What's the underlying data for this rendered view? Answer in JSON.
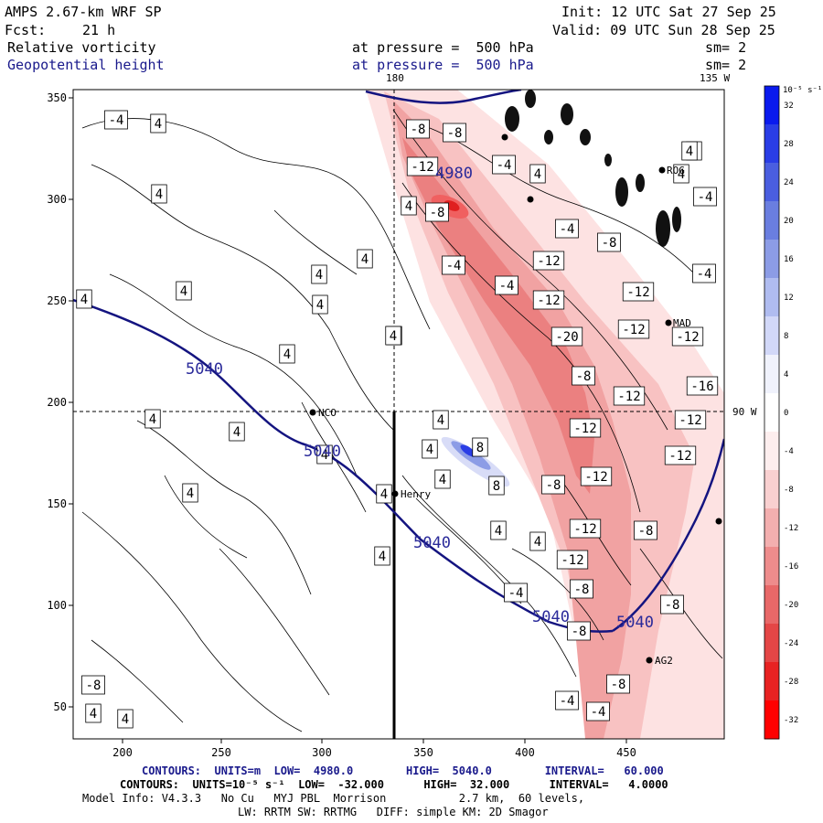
{
  "header": {
    "model": "AMPS 2.67-km WRF SP",
    "init": "Init: 12 UTC Sat 27 Sep 25",
    "fcst_label": "Fcst:",
    "fcst_value": "21 h",
    "valid": "Valid: 09 UTC Sun 28 Sep 25",
    "field1": "Relative vorticity",
    "field1_level": "at pressure =  500 hPa",
    "field1_sm": "sm= 2",
    "field2": "Geopotential height",
    "field2_level": "at pressure =  500 hPa",
    "field2_sm": "sm= 2"
  },
  "map": {
    "x_ticks": [
      "200",
      "250",
      "300",
      "350",
      "400",
      "450"
    ],
    "y_ticks": [
      "350",
      "300",
      "250",
      "200",
      "150",
      "100",
      "50"
    ],
    "meridian_180": "180",
    "meridian_135w": "135 W",
    "meridian_90w": "90 W",
    "stations": [
      "ROG",
      "MAD",
      "NCO",
      "Henry",
      "AG2"
    ],
    "height_labels": [
      "5040",
      "5040",
      "5040",
      "5040",
      "5040",
      "4980"
    ],
    "vort_labels": [
      "-4",
      "4",
      "-8",
      "-8",
      "-12",
      "-8",
      "-4",
      "4",
      "4",
      "4",
      "4",
      "4",
      "4",
      "4",
      "4",
      "-4",
      "-4",
      "-12",
      "-12",
      "-12",
      "-20",
      "-12",
      "-12",
      "-8",
      "-12",
      "-16",
      "-12",
      "-12",
      "-8",
      "-8",
      "-12",
      "-12",
      "-12",
      "-8",
      "-12",
      "-8",
      "-8",
      "-4",
      "-4",
      "-8",
      "-8",
      "-4",
      "-4",
      "8",
      "8",
      "4",
      "4",
      "4",
      "4",
      "4",
      "4",
      "4",
      "4",
      "4",
      "4",
      "4",
      "-4",
      "-8",
      "4",
      "4",
      "4",
      "-4",
      "4",
      "4",
      "4",
      "4",
      "4"
    ]
  },
  "colorbar": {
    "unit": "10⁻⁵ s⁻¹",
    "labels": [
      "32",
      "28",
      "24",
      "20",
      "16",
      "12",
      "8",
      "4",
      "0",
      "-4",
      "-8",
      "-12",
      "-16",
      "-20",
      "-24",
      "-28",
      "-32"
    ],
    "colors": [
      "#0a1aee",
      "#2a3de6",
      "#4a5ee0",
      "#6a7ee0",
      "#8c9ce6",
      "#b0bcf0",
      "#d2d8f8",
      "#f0f2fc",
      "#ffffff",
      "#fdeeee",
      "#f9d0d0",
      "#f3afaf",
      "#ee8c8c",
      "#e86868",
      "#e44646",
      "#e82222",
      "#ff0000"
    ]
  },
  "footer": {
    "line1": "CONTOURS:  UNITS=m  LOW=  4980.0        HIGH=  5040.0        INTERVAL=   60.000",
    "line2": "CONTOURS:  UNITS=10⁻⁵ s⁻¹  LOW=  -32.000      HIGH=  32.000      INTERVAL=   4.0000",
    "line3": "Model Info: V4.3.3   No Cu   MYJ PBL  Morrison           2.7 km,  60 levels,",
    "line4": "LW: RRTM SW: RRTMG   DIFF: simple KM: 2D Smagor"
  }
}
